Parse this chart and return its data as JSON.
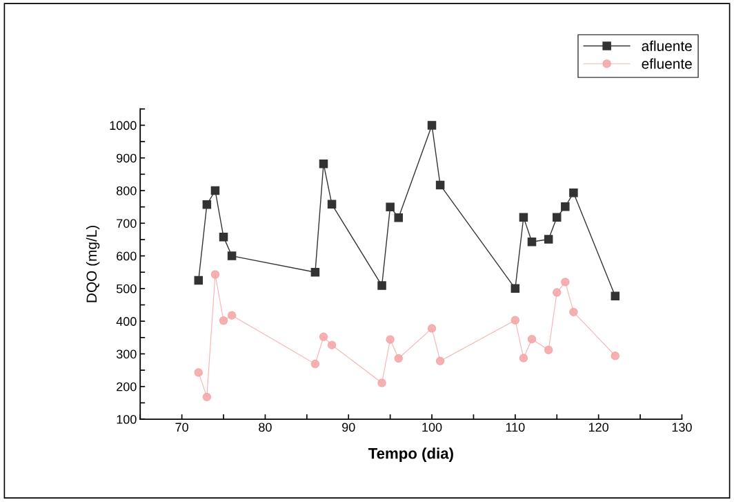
{
  "chart_data": {
    "type": "line",
    "xlabel": "Tempo (dia)",
    "ylabel": "DQO (mg/L)",
    "x": [
      72,
      73,
      74,
      75,
      76,
      86,
      87,
      88,
      94,
      95,
      96,
      100,
      101,
      110,
      111,
      112,
      114,
      115,
      116,
      117,
      122
    ],
    "series": [
      {
        "name": "afluente",
        "color": "#333333",
        "marker": "square",
        "values": [
          525,
          757,
          800,
          658,
          600,
          550,
          882,
          758,
          509,
          750,
          717,
          1000,
          817,
          500,
          718,
          643,
          651,
          718,
          751,
          793,
          477
        ]
      },
      {
        "name": "efluente",
        "color": "#f4a4a4",
        "marker": "circle",
        "values": [
          243,
          168,
          543,
          402,
          418,
          269,
          352,
          327,
          211,
          344,
          286,
          378,
          278,
          403,
          287,
          345,
          312,
          488,
          520,
          428,
          294
        ]
      }
    ],
    "xlim": [
      65,
      130
    ],
    "xticks": [
      {
        "value": 65,
        "label": null
      },
      70,
      {
        "value": 75,
        "label": null
      },
      80,
      {
        "value": 85,
        "label": null
      },
      90,
      {
        "value": 95,
        "label": null
      },
      100,
      {
        "value": 105,
        "label": null
      },
      110,
      {
        "value": 115,
        "label": null
      },
      120,
      {
        "value": 125,
        "label": null
      },
      130
    ],
    "ylim": [
      100,
      1050
    ],
    "yticks": [
      100,
      {
        "value": 150,
        "label": null
      },
      200,
      {
        "value": 250,
        "label": null
      },
      300,
      {
        "value": 350,
        "label": null
      },
      400,
      {
        "value": 450,
        "label": null
      },
      500,
      {
        "value": 550,
        "label": null
      },
      600,
      {
        "value": 650,
        "label": null
      },
      700,
      {
        "value": 750,
        "label": null
      },
      800,
      {
        "value": 850,
        "label": null
      },
      900,
      {
        "value": 950,
        "label": null
      },
      1000,
      {
        "value": 1050,
        "label": null
      }
    ],
    "grid": false,
    "legend": "top right",
    "line_style": "solid"
  }
}
